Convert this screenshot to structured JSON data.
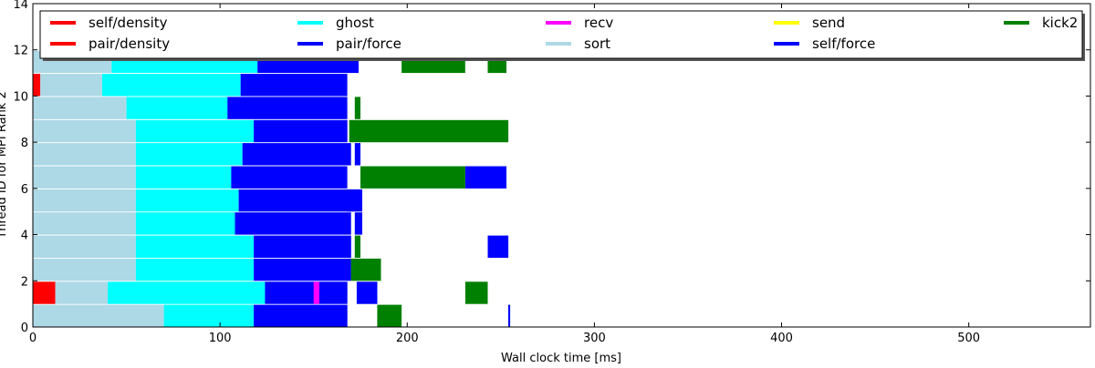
{
  "chart_data": {
    "type": "bar",
    "orientation": "horizontal",
    "title": "",
    "xlabel": "Wall clock time [ms]",
    "ylabel": "Thread ID for MPI Rank 2",
    "xlim": [
      0,
      565
    ],
    "ylim": [
      0,
      14
    ],
    "xticks": [
      "0",
      "100",
      "200",
      "300",
      "400",
      "500"
    ],
    "yticks": [
      "0",
      "2",
      "4",
      "6",
      "8",
      "10",
      "12",
      "14"
    ],
    "grid": false,
    "legend_position": "top",
    "legend_columns": 5,
    "series": [
      {
        "name": "self/density",
        "color": "#ff0000"
      },
      {
        "name": "pair/density",
        "color": "#ff0000"
      },
      {
        "name": "ghost",
        "color": "#00ffff"
      },
      {
        "name": "pair/force",
        "color": "#0000ff"
      },
      {
        "name": "recv",
        "color": "#ff00ff"
      },
      {
        "name": "sort",
        "color": "#add8e6"
      },
      {
        "name": "send",
        "color": "#ffff00"
      },
      {
        "name": "self/force",
        "color": "#0000ff"
      },
      {
        "name": "kick2",
        "color": "#008000"
      }
    ],
    "threads": [
      {
        "thread": 0,
        "tasks": [
          {
            "series": "sort",
            "start": 0,
            "end": 70
          },
          {
            "series": "ghost",
            "start": 70,
            "end": 118
          },
          {
            "series": "pair/force",
            "start": 118,
            "end": 168
          },
          {
            "series": "kick2",
            "start": 184,
            "end": 197
          },
          {
            "series": "pair/force",
            "start": 254,
            "end": 255
          }
        ]
      },
      {
        "thread": 1,
        "tasks": [
          {
            "series": "self/density",
            "start": 0,
            "end": 12
          },
          {
            "series": "sort",
            "start": 12,
            "end": 40
          },
          {
            "series": "ghost",
            "start": 40,
            "end": 124
          },
          {
            "series": "pair/force",
            "start": 124,
            "end": 168
          },
          {
            "series": "recv",
            "start": 150,
            "end": 153
          },
          {
            "series": "pair/force",
            "start": 173,
            "end": 184
          },
          {
            "series": "kick2",
            "start": 231,
            "end": 243
          }
        ]
      },
      {
        "thread": 2,
        "tasks": [
          {
            "series": "sort",
            "start": 0,
            "end": 55
          },
          {
            "series": "ghost",
            "start": 55,
            "end": 118
          },
          {
            "series": "pair/force",
            "start": 118,
            "end": 170
          },
          {
            "series": "kick2",
            "start": 170,
            "end": 186
          }
        ]
      },
      {
        "thread": 3,
        "tasks": [
          {
            "series": "sort",
            "start": 0,
            "end": 55
          },
          {
            "series": "ghost",
            "start": 55,
            "end": 118
          },
          {
            "series": "pair/force",
            "start": 118,
            "end": 170
          },
          {
            "series": "kick2",
            "start": 172,
            "end": 175
          },
          {
            "series": "pair/force",
            "start": 243,
            "end": 254
          }
        ]
      },
      {
        "thread": 4,
        "tasks": [
          {
            "series": "sort",
            "start": 0,
            "end": 55
          },
          {
            "series": "ghost",
            "start": 55,
            "end": 108
          },
          {
            "series": "pair/force",
            "start": 108,
            "end": 170
          },
          {
            "series": "pair/force",
            "start": 172,
            "end": 176
          }
        ]
      },
      {
        "thread": 5,
        "tasks": [
          {
            "series": "sort",
            "start": 0,
            "end": 55
          },
          {
            "series": "ghost",
            "start": 55,
            "end": 110
          },
          {
            "series": "pair/force",
            "start": 110,
            "end": 170
          },
          {
            "series": "pair/force",
            "start": 168,
            "end": 176
          }
        ]
      },
      {
        "thread": 6,
        "tasks": [
          {
            "series": "sort",
            "start": 0,
            "end": 55
          },
          {
            "series": "ghost",
            "start": 55,
            "end": 106
          },
          {
            "series": "pair/force",
            "start": 106,
            "end": 168
          },
          {
            "series": "kick2",
            "start": 175,
            "end": 231
          },
          {
            "series": "pair/force",
            "start": 231,
            "end": 253
          }
        ]
      },
      {
        "thread": 7,
        "tasks": [
          {
            "series": "sort",
            "start": 0,
            "end": 55
          },
          {
            "series": "ghost",
            "start": 55,
            "end": 112
          },
          {
            "series": "pair/force",
            "start": 112,
            "end": 170
          },
          {
            "series": "pair/force",
            "start": 172,
            "end": 175
          }
        ]
      },
      {
        "thread": 8,
        "tasks": [
          {
            "series": "sort",
            "start": 0,
            "end": 55
          },
          {
            "series": "ghost",
            "start": 55,
            "end": 118
          },
          {
            "series": "pair/force",
            "start": 118,
            "end": 168
          },
          {
            "series": "kick2",
            "start": 169,
            "end": 254
          }
        ]
      },
      {
        "thread": 9,
        "tasks": [
          {
            "series": "sort",
            "start": 0,
            "end": 50
          },
          {
            "series": "ghost",
            "start": 50,
            "end": 104
          },
          {
            "series": "pair/force",
            "start": 104,
            "end": 168
          },
          {
            "series": "kick2",
            "start": 172,
            "end": 175
          }
        ]
      },
      {
        "thread": 10,
        "tasks": [
          {
            "series": "self/density",
            "start": 0,
            "end": 4
          },
          {
            "series": "sort",
            "start": 4,
            "end": 37
          },
          {
            "series": "ghost",
            "start": 37,
            "end": 111
          },
          {
            "series": "pair/force",
            "start": 111,
            "end": 168
          }
        ]
      },
      {
        "thread": 11,
        "tasks": [
          {
            "series": "sort",
            "start": 0,
            "end": 42
          },
          {
            "series": "ghost",
            "start": 42,
            "end": 120
          },
          {
            "series": "pair/force",
            "start": 120,
            "end": 174
          },
          {
            "series": "kick2",
            "start": 197,
            "end": 231
          },
          {
            "series": "kick2",
            "start": 243,
            "end": 253
          }
        ]
      }
    ]
  }
}
